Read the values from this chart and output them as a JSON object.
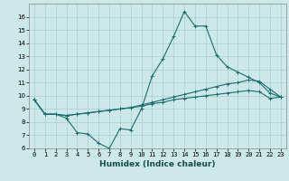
{
  "xlabel": "Humidex (Indice chaleur)",
  "ylabel": "",
  "bg_color": "#cce8e8",
  "line_color": "#1a6e6e",
  "grid_color": "#aacece",
  "x_values": [
    0,
    1,
    2,
    3,
    4,
    5,
    6,
    7,
    8,
    9,
    10,
    11,
    12,
    13,
    14,
    15,
    16,
    17,
    18,
    19,
    20,
    21,
    22,
    23
  ],
  "line1": [
    9.7,
    8.6,
    8.6,
    8.3,
    7.2,
    7.1,
    6.4,
    6.0,
    7.5,
    7.4,
    9.0,
    11.5,
    12.8,
    14.5,
    16.4,
    15.3,
    15.3,
    13.1,
    12.2,
    11.8,
    11.4,
    11.0,
    10.2,
    9.9
  ],
  "line2": [
    9.7,
    8.6,
    8.6,
    8.5,
    8.6,
    8.7,
    8.8,
    8.9,
    9.0,
    9.1,
    9.3,
    9.5,
    9.7,
    9.9,
    10.1,
    10.3,
    10.5,
    10.7,
    10.9,
    11.0,
    11.2,
    11.1,
    10.5,
    9.9
  ],
  "line3": [
    9.7,
    8.6,
    8.6,
    8.5,
    8.6,
    8.7,
    8.8,
    8.9,
    9.0,
    9.1,
    9.2,
    9.4,
    9.5,
    9.7,
    9.8,
    9.9,
    10.0,
    10.1,
    10.2,
    10.3,
    10.4,
    10.3,
    9.8,
    9.9
  ],
  "ylim": [
    6,
    17
  ],
  "xlim": [
    -0.5,
    23.5
  ],
  "yticks": [
    6,
    7,
    8,
    9,
    10,
    11,
    12,
    13,
    14,
    15,
    16
  ],
  "xtick_labels": [
    "0",
    "1",
    "2",
    "3",
    "4",
    "5",
    "6",
    "7",
    "8",
    "9",
    "10",
    "11",
    "12",
    "13",
    "14",
    "15",
    "16",
    "17",
    "18",
    "19",
    "20",
    "21",
    "22",
    "23"
  ],
  "tick_fontsize": 5.0,
  "label_fontsize": 6.5
}
